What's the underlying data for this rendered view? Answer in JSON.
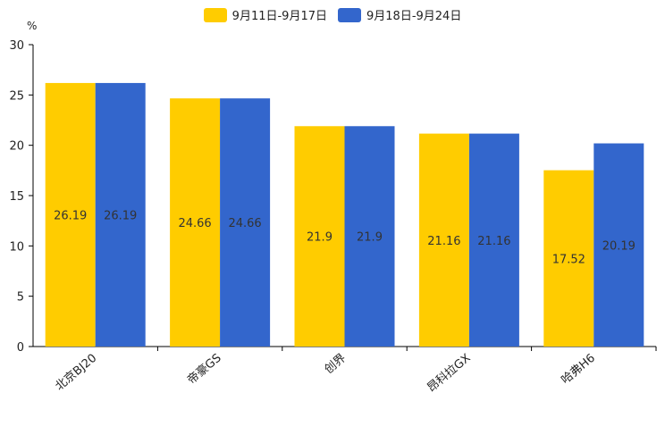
{
  "chart_data": {
    "type": "bar",
    "title": "",
    "unit": "%",
    "xlabel": "",
    "ylabel": "",
    "ylim": [
      0,
      30
    ],
    "yticks": [
      0,
      5,
      10,
      15,
      20,
      25,
      30
    ],
    "categories": [
      "北京BJ20",
      "帝豪GS",
      "创界",
      "昂科拉GX",
      "哈弗H6"
    ],
    "series": [
      {
        "name": "9月11日-9月17日",
        "color": "#FFCC00",
        "values": [
          26.19,
          24.66,
          21.9,
          21.16,
          17.52
        ]
      },
      {
        "name": "9月18日-9月24日",
        "color": "#3366CC",
        "values": [
          26.19,
          24.66,
          21.9,
          21.16,
          20.19
        ]
      }
    ],
    "legend_position": "top-center",
    "grid": false
  }
}
